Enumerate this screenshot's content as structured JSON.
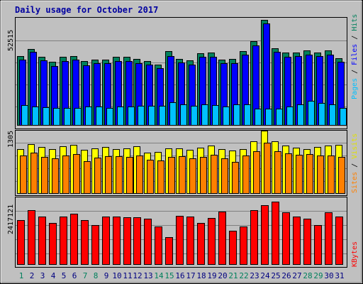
{
  "chart_data": {
    "type": "bar",
    "title": "Daily usage for October 2017",
    "categories": [
      "1",
      "2",
      "3",
      "4",
      "5",
      "6",
      "7",
      "8",
      "9",
      "10",
      "11",
      "12",
      "13",
      "14",
      "15",
      "16",
      "17",
      "18",
      "19",
      "20",
      "21",
      "22",
      "23",
      "24",
      "25",
      "26",
      "27",
      "28",
      "29",
      "30",
      "31"
    ],
    "weekend_days": [
      "1",
      "7",
      "8",
      "14",
      "15",
      "21",
      "22",
      "28",
      "29"
    ],
    "panels": [
      {
        "id": "hits",
        "max_label": "52515",
        "ylim": [
          0,
          52515
        ],
        "legend": [
          "Pages",
          "Files",
          "Hits"
        ],
        "series": [
          {
            "name": "Hits",
            "color": "#00805c",
            "values": [
              34500,
              38000,
              34200,
              31500,
              34100,
              34500,
              31800,
              32800,
              32800,
              34100,
              34200,
              33000,
              31900,
              30100,
              37000,
              33000,
              32200,
              36000,
              36100,
              32600,
              32900,
              36900,
              41800,
              52515,
              38200,
              36100,
              36200,
              37100,
              36200,
              37100,
              33500
            ]
          },
          {
            "name": "Files",
            "color": "#0000ff",
            "values": [
              32500,
              36500,
              32300,
              29500,
              32100,
              32500,
              29900,
              30800,
              30800,
              32100,
              32000,
              31000,
              30000,
              28400,
              34500,
              31100,
              30200,
              34000,
              34100,
              30700,
              31000,
              35000,
              39900,
              50700,
              36400,
              34100,
              34300,
              35200,
              34300,
              35200,
              31500
            ]
          },
          {
            "name": "Pages",
            "color": "#00c0ff",
            "values": [
              10000,
              9400,
              9000,
              8400,
              8500,
              8500,
              9300,
              9300,
              8500,
              9100,
              9300,
              9600,
              9600,
              9600,
              11300,
              10300,
              9700,
              10300,
              9800,
              9200,
              10300,
              10300,
              8100,
              8000,
              8000,
              9200,
              10400,
              12200,
              11000,
              10300,
              8600
            ]
          }
        ]
      },
      {
        "id": "visits",
        "max_label": "1305",
        "ylim": [
          0,
          1305
        ],
        "legend": [
          "Sites",
          "Visits"
        ],
        "series": [
          {
            "name": "Visits",
            "color": "#ffff00",
            "values": [
              920,
              1020,
              960,
              920,
              980,
              1010,
              900,
              930,
              960,
              920,
              930,
              980,
              840,
              860,
              940,
              930,
              910,
              950,
              990,
              920,
              890,
              920,
              1080,
              1305,
              1080,
              990,
              950,
              920,
              960,
              1000,
              1010
            ]
          },
          {
            "name": "Sites",
            "color": "#ff8000",
            "values": [
              780,
              840,
              760,
              730,
              790,
              820,
              660,
              740,
              770,
              770,
              750,
              790,
              700,
              680,
              760,
              770,
              730,
              760,
              800,
              730,
              650,
              780,
              880,
              1050,
              880,
              830,
              800,
              810,
              780,
              790,
              760
            ]
          }
        ]
      },
      {
        "id": "kbytes",
        "max_label": "2417121",
        "ylim": [
          0,
          2417121
        ],
        "legend": [
          "KBytes"
        ],
        "series": [
          {
            "name": "KBytes",
            "color": "#ff0000",
            "values": [
              1700000,
              2100000,
              1850000,
              1600000,
              1850000,
              1950000,
              1700000,
              1500000,
              1850000,
              1850000,
              1800000,
              1800000,
              1750000,
              1450000,
              1050000,
              1870000,
              1850000,
              1600000,
              1780000,
              2040000,
              1300000,
              1450000,
              2080000,
              2270000,
              2417121,
              2000000,
              1850000,
              1750000,
              1500000,
              2000000,
              1840000
            ]
          }
        ]
      }
    ]
  }
}
